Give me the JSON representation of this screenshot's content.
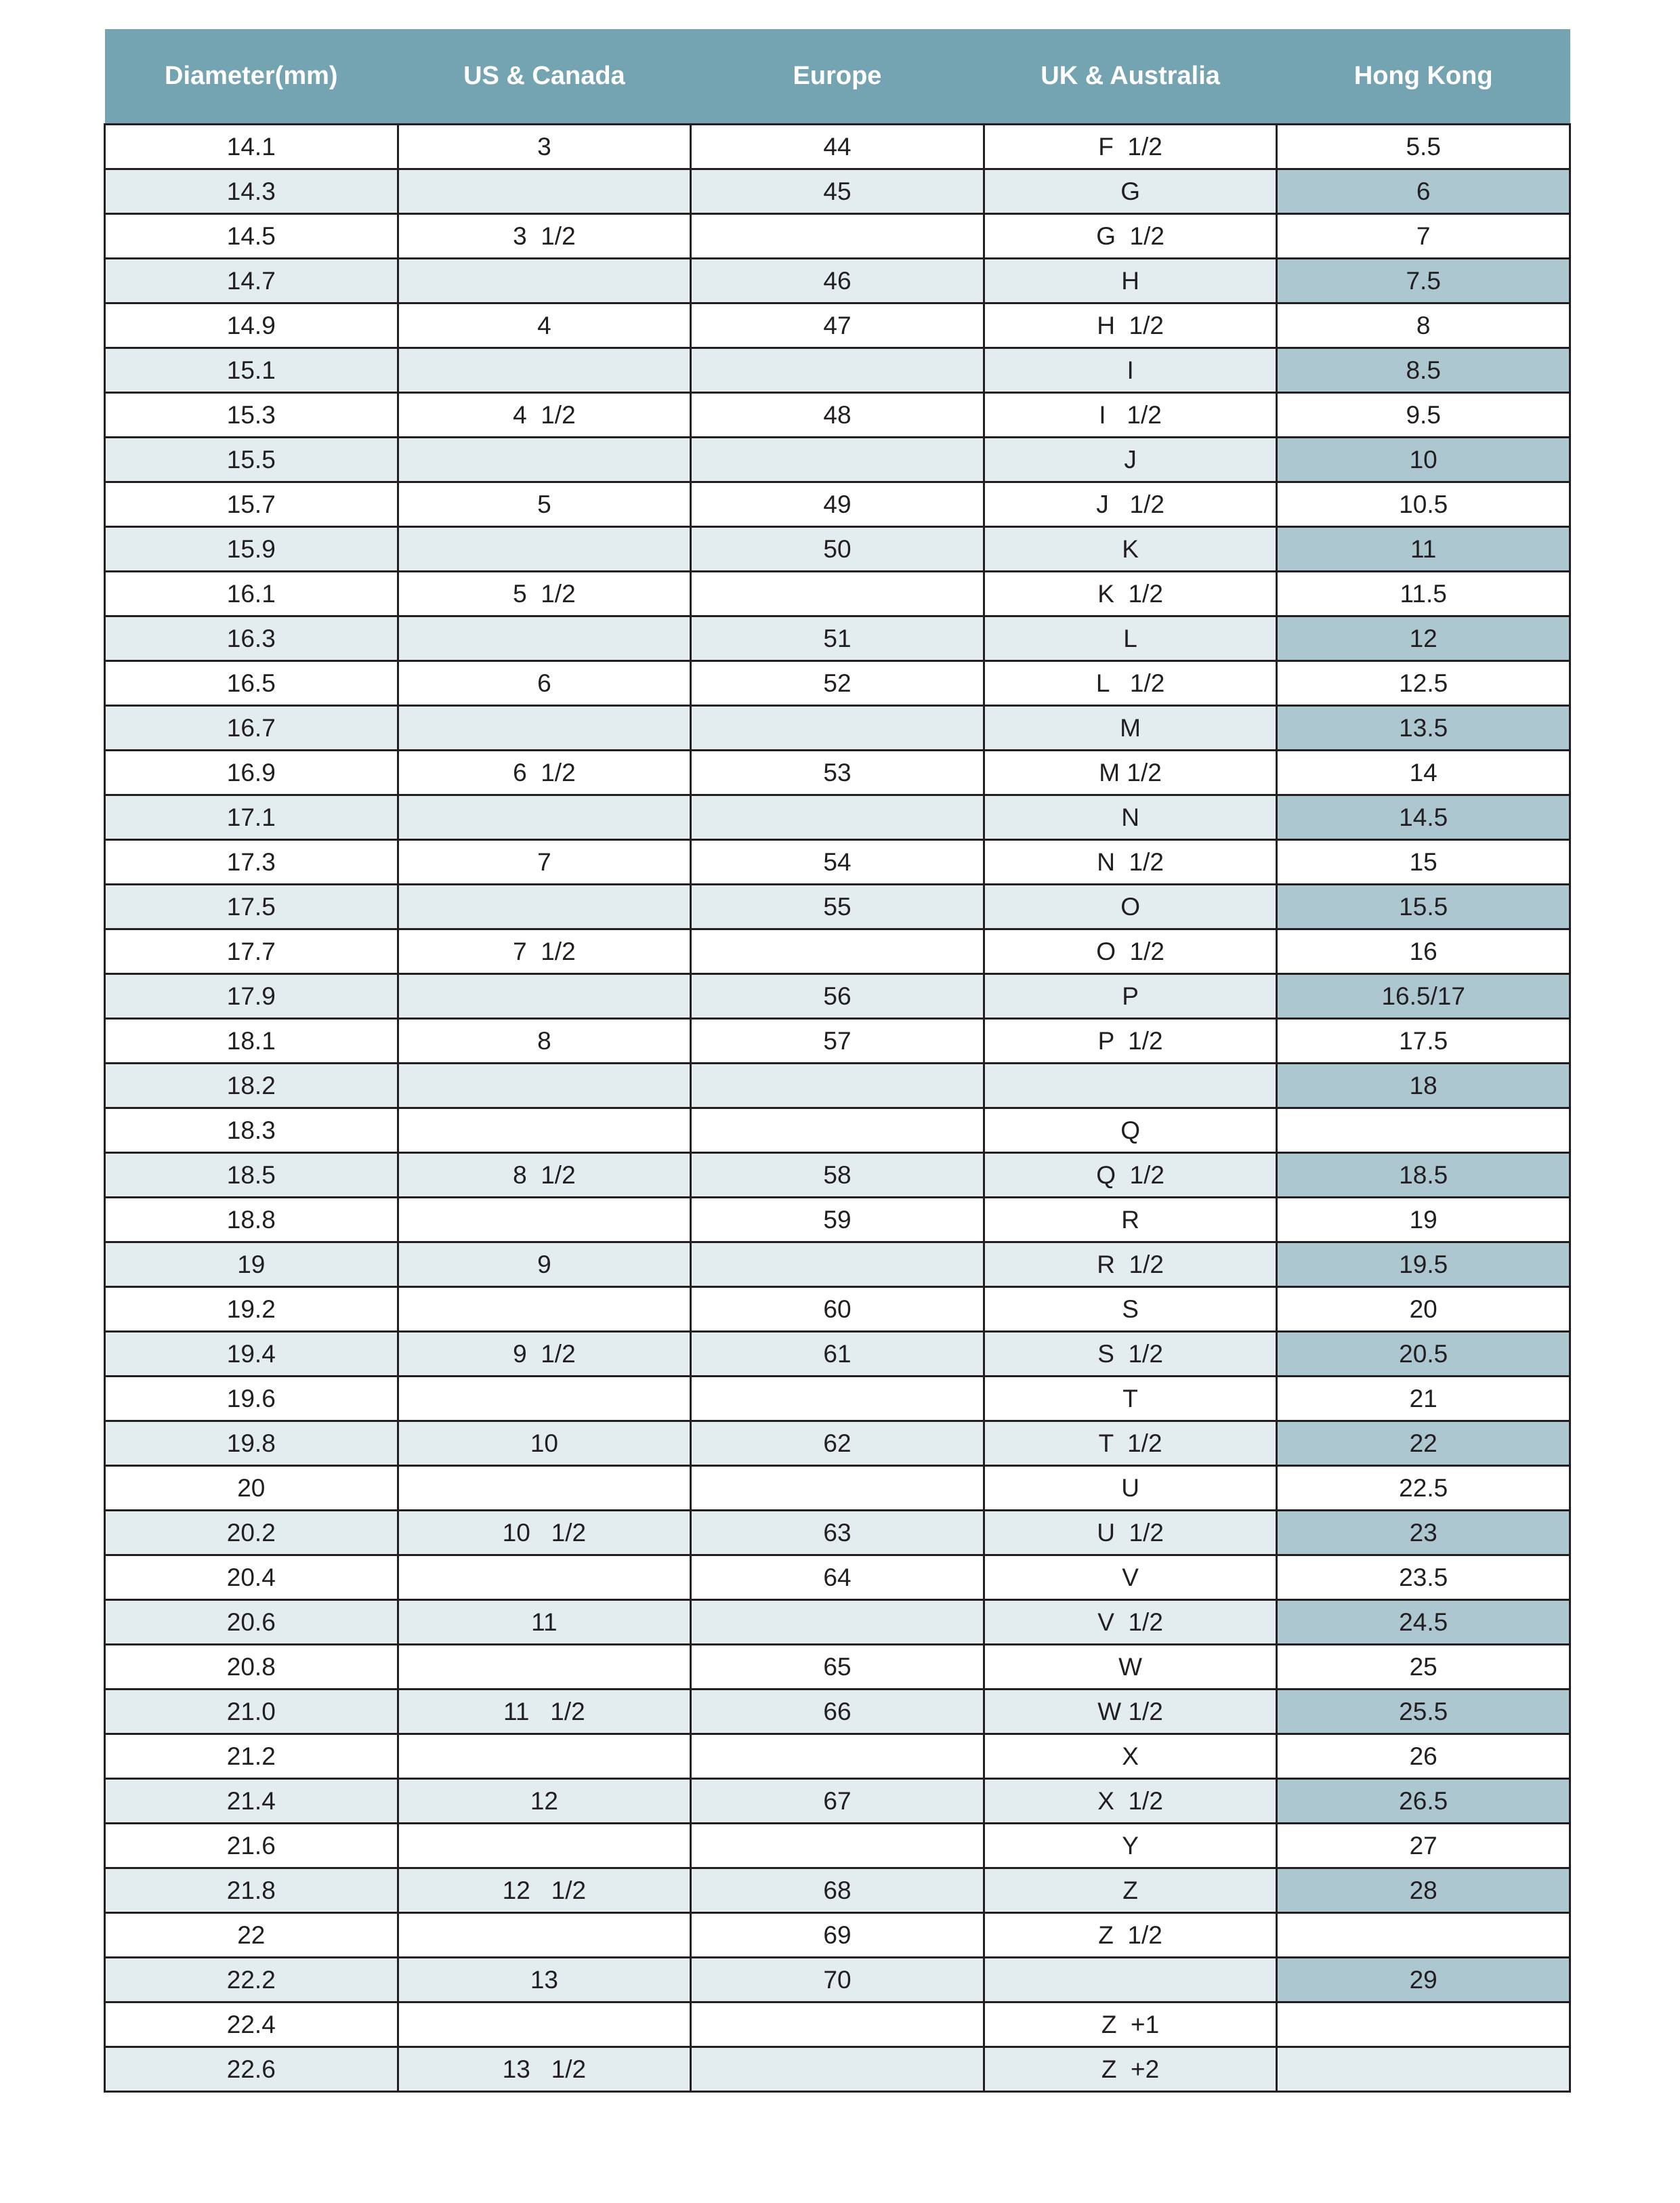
{
  "colors": {
    "header": "#74a3b2",
    "row_alt": "#e3ecef",
    "hk_highlight": "#adc7d1",
    "border": "#231f20"
  },
  "headers": [
    "Diameter(mm)",
    "US & Canada",
    "Europe",
    "UK & Australia",
    "Hong Kong"
  ],
  "rows": [
    [
      "14.1",
      "3",
      "44",
      "F  1/2",
      "5.5"
    ],
    [
      "14.3",
      "",
      "45",
      "G",
      "6"
    ],
    [
      "14.5",
      "3  1/2",
      "",
      "G  1/2",
      "7"
    ],
    [
      "14.7",
      "",
      "46",
      "H",
      "7.5"
    ],
    [
      "14.9",
      "4",
      "47",
      "H  1/2",
      "8"
    ],
    [
      "15.1",
      "",
      "",
      "I",
      "8.5"
    ],
    [
      "15.3",
      "4  1/2",
      "48",
      "I   1/2",
      "9.5"
    ],
    [
      "15.5",
      "",
      "",
      "J",
      "10"
    ],
    [
      "15.7",
      "5",
      "49",
      "J   1/2",
      "10.5"
    ],
    [
      "15.9",
      "",
      "50",
      "K",
      "11"
    ],
    [
      "16.1",
      "5  1/2",
      "",
      "K  1/2",
      "11.5"
    ],
    [
      "16.3",
      "",
      "51",
      "L",
      "12"
    ],
    [
      "16.5",
      "6",
      "52",
      "L   1/2",
      "12.5"
    ],
    [
      "16.7",
      "",
      "",
      "M",
      "13.5"
    ],
    [
      "16.9",
      "6  1/2",
      "53",
      "M 1/2",
      "14"
    ],
    [
      "17.1",
      "",
      "",
      "N",
      "14.5"
    ],
    [
      "17.3",
      "7",
      "54",
      "N  1/2",
      "15"
    ],
    [
      "17.5",
      "",
      "55",
      "O",
      "15.5"
    ],
    [
      "17.7",
      "7  1/2",
      "",
      "O  1/2",
      "16"
    ],
    [
      "17.9",
      "",
      "56",
      "P",
      "16.5/17"
    ],
    [
      "18.1",
      "8",
      "57",
      "P  1/2",
      "17.5"
    ],
    [
      "18.2",
      "",
      "",
      "",
      "18"
    ],
    [
      "18.3",
      "",
      "",
      "Q",
      ""
    ],
    [
      "18.5",
      "8  1/2",
      "58",
      "Q  1/2",
      "18.5"
    ],
    [
      "18.8",
      "",
      "59",
      "R",
      "19"
    ],
    [
      "19",
      "9",
      "",
      "R  1/2",
      "19.5"
    ],
    [
      "19.2",
      "",
      "60",
      "S",
      "20"
    ],
    [
      "19.4",
      "9  1/2",
      "61",
      "S  1/2",
      "20.5"
    ],
    [
      "19.6",
      "",
      "",
      "T",
      "21"
    ],
    [
      "19.8",
      "10",
      "62",
      "T  1/2",
      "22"
    ],
    [
      "20",
      "",
      "",
      "U",
      "22.5"
    ],
    [
      "20.2",
      "10   1/2",
      "63",
      "U  1/2",
      "23"
    ],
    [
      "20.4",
      "",
      "64",
      "V",
      "23.5"
    ],
    [
      "20.6",
      "11",
      "",
      "V  1/2",
      "24.5"
    ],
    [
      "20.8",
      "",
      "65",
      "W",
      "25"
    ],
    [
      "21.0",
      "11   1/2",
      "66",
      "W 1/2",
      "25.5"
    ],
    [
      "21.2",
      "",
      "",
      "X",
      "26"
    ],
    [
      "21.4",
      "12",
      "67",
      "X  1/2",
      "26.5"
    ],
    [
      "21.6",
      "",
      "",
      "Y",
      "27"
    ],
    [
      "21.8",
      "12   1/2",
      "68",
      "Z",
      "28"
    ],
    [
      "22",
      "",
      "69",
      "Z  1/2",
      ""
    ],
    [
      "22.2",
      "13",
      "70",
      "",
      "29"
    ],
    [
      "22.4",
      "",
      "",
      "Z  +1",
      ""
    ],
    [
      "22.6",
      "13   1/2",
      "",
      "Z  +2",
      ""
    ]
  ]
}
